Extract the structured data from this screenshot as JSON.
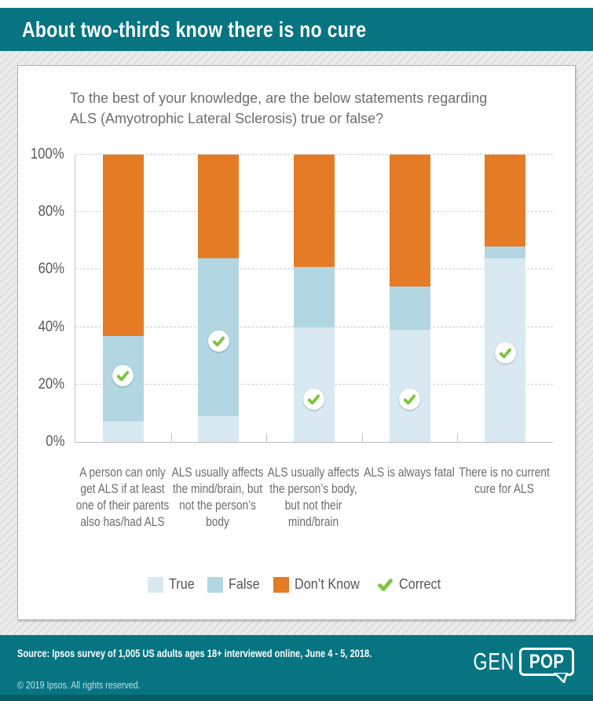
{
  "header": {
    "title": "About two-thirds know there is no cure",
    "background_color": "#077482"
  },
  "chart": {
    "question_line1": "To the best of your knowledge, are the below statements regarding",
    "question_line2": "ALS (Amyotrophic Lateral Sclerosis) true or false?"
  },
  "chart_data": {
    "type": "bar",
    "stacked": true,
    "title": "To the best of your knowledge, are the below statements regarding ALS (Amyotrophic Lateral Sclerosis) true or false?",
    "categories": [
      "A person can only get ALS if at least one of their parents also has/had ALS",
      "ALS usually affects the mind/brain, but not the person’s body",
      "ALS usually affects the person’s body, but not their mind/brain",
      "ALS is always fatal",
      "There is no current cure for ALS"
    ],
    "series": [
      {
        "name": "True",
        "color": "#d8e9f1",
        "values": [
          7,
          9,
          40,
          39,
          64
        ]
      },
      {
        "name": "False",
        "color": "#b2d6e2",
        "values": [
          30,
          55,
          21,
          15,
          4
        ]
      },
      {
        "name": "Don’t Know",
        "color": "#e57b25",
        "values": [
          63,
          36,
          39,
          46,
          32
        ]
      }
    ],
    "correct_marker": {
      "label": "Correct",
      "color": "#80c342",
      "marker_center_pct": [
        23,
        35,
        15,
        15,
        31
      ],
      "correct_segment": [
        "False",
        "False",
        "True",
        "True",
        "True"
      ]
    },
    "y_ticks": [
      {
        "label": "100%",
        "value": 100
      },
      {
        "label": "80%",
        "value": 80
      },
      {
        "label": "60%",
        "value": 60
      },
      {
        "label": "40%",
        "value": 40
      },
      {
        "label": "20%",
        "value": 20
      },
      {
        "label": "0%",
        "value": 0
      }
    ],
    "ylim": [
      0,
      100
    ],
    "grid": "dashed horizontal lines every 20%",
    "legend_position": "bottom"
  },
  "legend": {
    "items": [
      {
        "label": "True",
        "swatch": "#d8e9f1"
      },
      {
        "label": "False",
        "swatch": "#b2d6e2"
      },
      {
        "label": "Don’t Know",
        "swatch": "#e57b25"
      },
      {
        "label": "Correct",
        "icon": "check",
        "color": "#80c342"
      }
    ]
  },
  "footer": {
    "source": "Source: Ipsos survey of 1,005 US adults ages 18+ interviewed online, June 4 - 5, 2018.",
    "copyright": "© 2019 Ipsos. All rights reserved.",
    "logo": {
      "gen": "GEN",
      "pop": "POP"
    }
  }
}
